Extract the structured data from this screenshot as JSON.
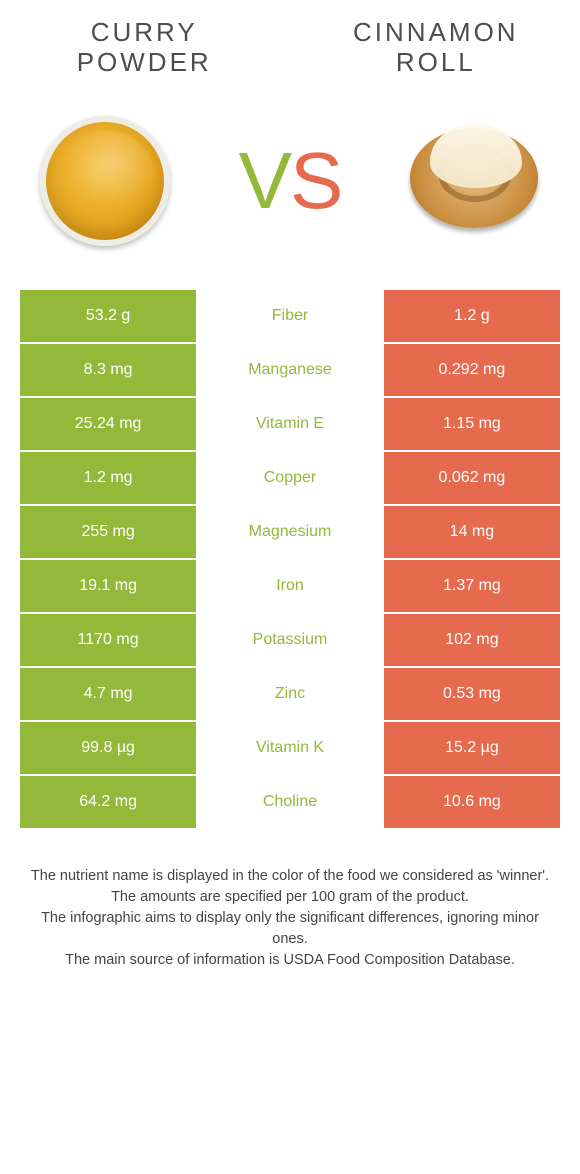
{
  "colors": {
    "left_bg": "#93b83a",
    "right_bg": "#e66a4d",
    "mid_text_green": "#93b83a",
    "mid_text_orange": "#e66a4d",
    "title_color": "#4d4d4d"
  },
  "left_title": "CURRY POWDER",
  "right_title": "CINNAMON ROLL",
  "vs": {
    "v": "V",
    "s": "S",
    "v_color": "#93b83a",
    "s_color": "#e66a4d"
  },
  "rows": [
    {
      "left": "53.2 g",
      "label": "Fiber",
      "right": "1.2 g",
      "winner": "left"
    },
    {
      "left": "8.3 mg",
      "label": "Manganese",
      "right": "0.292 mg",
      "winner": "left"
    },
    {
      "left": "25.24 mg",
      "label": "Vitamin E",
      "right": "1.15 mg",
      "winner": "left"
    },
    {
      "left": "1.2 mg",
      "label": "Copper",
      "right": "0.062 mg",
      "winner": "left"
    },
    {
      "left": "255 mg",
      "label": "Magnesium",
      "right": "14 mg",
      "winner": "left"
    },
    {
      "left": "19.1 mg",
      "label": "Iron",
      "right": "1.37 mg",
      "winner": "left"
    },
    {
      "left": "1170 mg",
      "label": "Potassium",
      "right": "102 mg",
      "winner": "left"
    },
    {
      "left": "4.7 mg",
      "label": "Zinc",
      "right": "0.53 mg",
      "winner": "left"
    },
    {
      "left": "99.8 µg",
      "label": "Vitamin K",
      "right": "15.2 µg",
      "winner": "left"
    },
    {
      "left": "64.2 mg",
      "label": "Choline",
      "right": "10.6 mg",
      "winner": "left"
    }
  ],
  "footer": {
    "l1": "The nutrient name is displayed in the color of the food we considered as 'winner'.",
    "l2": "The amounts are specified per 100 gram of the product.",
    "l3": "The infographic aims to display only the significant differences, ignoring minor ones.",
    "l4": "The main source of information is USDA Food Composition Database."
  }
}
